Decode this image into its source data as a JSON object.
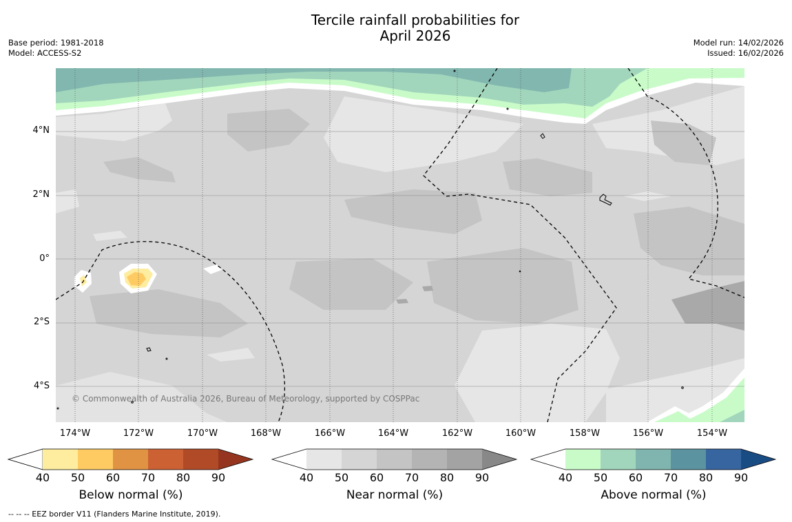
{
  "title_line1": "Tercile rainfall probabilities for",
  "title_line2": "April 2026",
  "base_period": "Base period: 1981-2018",
  "model": "Model: ACCESS-S2",
  "model_run": "Model run: 14/02/2026",
  "issued": "Issued: 16/02/2026",
  "latitude_labels": [
    "4°N",
    "2°N",
    "0°",
    "2°S",
    "4°S"
  ],
  "longitude_labels": [
    "174°W",
    "172°W",
    "170°W",
    "168°W",
    "166°W",
    "164°W",
    "162°W",
    "160°W",
    "158°W",
    "156°W",
    "154°W"
  ],
  "credit": "© Commonwealth of Australia 2026, Bureau of Meteorology, supported by COSPPac",
  "colorbars": [
    {
      "title": "Below normal (%)",
      "ticks": [
        "40",
        "50",
        "60",
        "70",
        "80",
        "90"
      ],
      "colors": [
        "#ffffff",
        "#feec9f",
        "#fecb63",
        "#e19344",
        "#cc6233",
        "#b04a27",
        "#96351f"
      ]
    },
    {
      "title": "Near normal (%)",
      "ticks": [
        "40",
        "50",
        "60",
        "70",
        "80",
        "90"
      ],
      "colors": [
        "#ffffff",
        "#e6e6e6",
        "#d5d5d5",
        "#c4c4c4",
        "#b4b4b4",
        "#a3a3a3",
        "#888888"
      ]
    },
    {
      "title": "Above normal (%)",
      "ticks": [
        "40",
        "50",
        "60",
        "70",
        "80",
        "90"
      ],
      "colors": [
        "#ffffff",
        "#c9fbc9",
        "#a2d6bc",
        "#7fb5ae",
        "#5b93a0",
        "#3665a0",
        "#1a4c84"
      ]
    }
  ],
  "footer": "--  --  -- EEZ border V11 (Flanders Marine Institute, 2019)."
}
